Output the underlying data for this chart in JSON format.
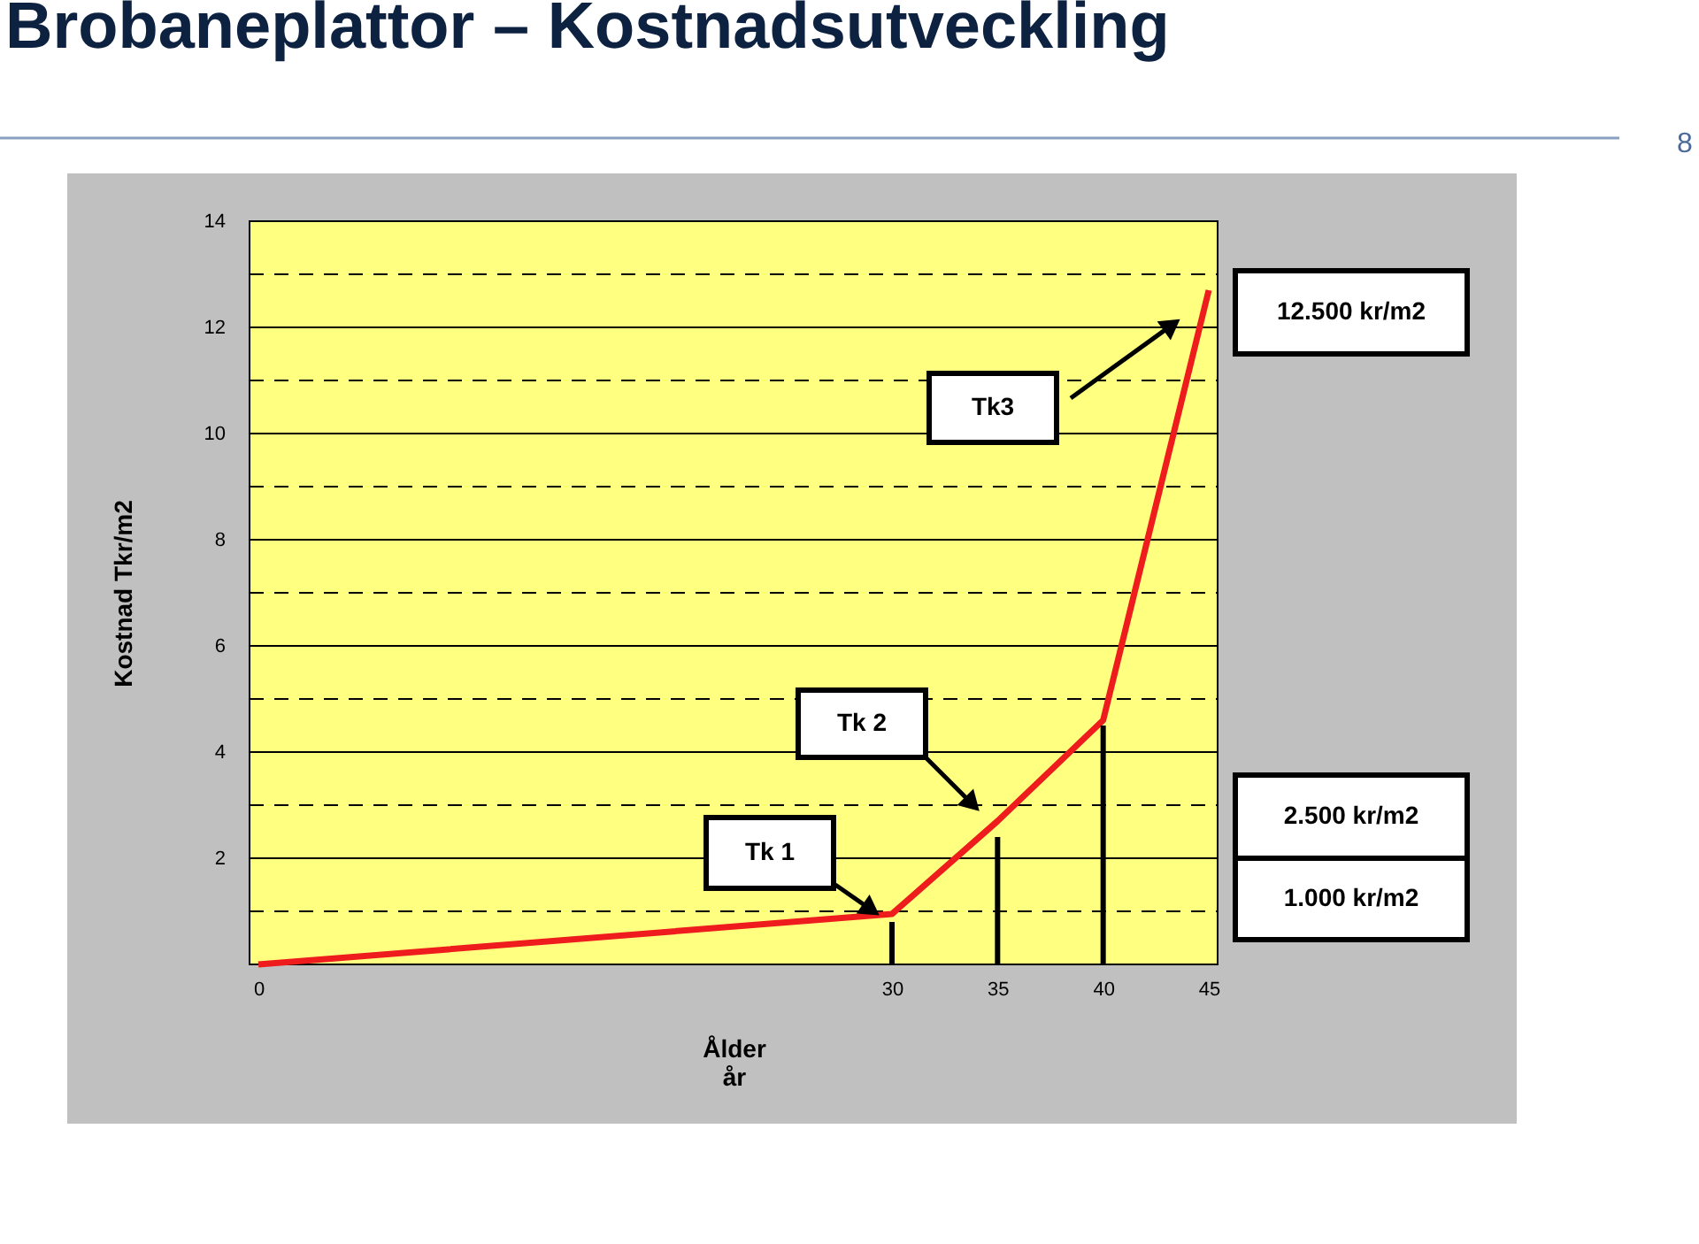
{
  "chart_data": {
    "type": "line",
    "title": "Brobaneplattor – Kostnadsutveckling",
    "xlabel": "Ålder\når",
    "ylabel": "Kostnad Tkr/m2",
    "x": [
      0,
      30,
      35,
      40,
      45
    ],
    "series": [
      {
        "color": "#ee1c1c",
        "values": [
          0,
          0.95,
          2.7,
          4.6,
          12.7
        ]
      },
      {
        "type": "bar",
        "x": [
          30,
          35,
          40
        ],
        "color": "#000000",
        "values": [
          0.8,
          2.4,
          4.5
        ]
      }
    ],
    "xlim": [
      0,
      45
    ],
    "xticks": [
      0,
      30,
      35,
      40,
      45
    ],
    "ylim": [
      0,
      14
    ],
    "yticks": [
      {
        "value": 1,
        "label": null
      },
      2,
      {
        "value": 3,
        "label": null
      },
      4,
      {
        "value": 5,
        "label": null
      },
      6,
      {
        "value": 7,
        "label": null
      },
      8,
      {
        "value": 9,
        "label": null
      },
      10,
      {
        "value": 11,
        "label": null
      },
      12,
      {
        "value": 13,
        "label": null
      },
      14
    ],
    "grid": "y",
    "marker": "none",
    "line_style": "solid",
    "annotations": [
      "Tk 1",
      "Tk 2",
      "Tk3",
      "12.500 kr/m2",
      "2.500 kr/m2",
      "1.000 kr/m2",
      "8"
    ]
  }
}
